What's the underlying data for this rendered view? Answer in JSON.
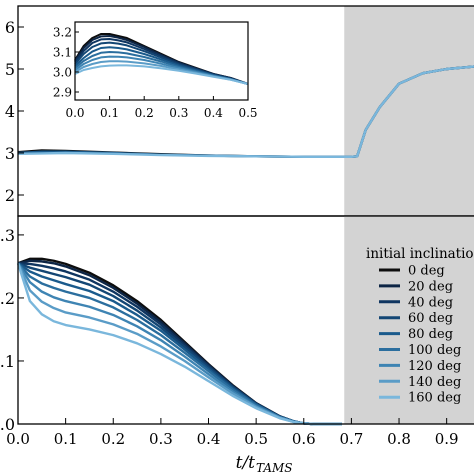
{
  "chart_data": [
    {
      "id": "top",
      "type": "line",
      "xlim": [
        0.0,
        0.97
      ],
      "ylim": [
        1.5,
        6.5
      ],
      "yticks": [
        2,
        3,
        4,
        5,
        6
      ],
      "ytick_labels": [
        "2",
        "3",
        "4",
        "5",
        "6"
      ],
      "shaded_region": [
        0.685,
        0.97
      ],
      "grid": false,
      "series": [
        {
          "name": "0 deg",
          "color": "#0d0d0d",
          "x": [
            0.0,
            0.05,
            0.1,
            0.2,
            0.3,
            0.4,
            0.5,
            0.6,
            0.7,
            0.712,
            0.72,
            0.73,
            0.76,
            0.8,
            0.85,
            0.9,
            0.97
          ],
          "y": [
            3.02,
            3.06,
            3.05,
            3.01,
            2.97,
            2.94,
            2.92,
            2.91,
            2.91,
            2.92,
            3.2,
            3.55,
            4.1,
            4.65,
            4.9,
            5.0,
            5.07
          ]
        },
        {
          "name": "80 deg",
          "color": "#1a5a8c",
          "x": [
            0.0,
            0.05,
            0.1,
            0.2,
            0.3,
            0.4,
            0.5,
            0.6,
            0.7,
            0.712,
            0.72,
            0.73,
            0.76,
            0.8,
            0.85,
            0.9,
            0.97
          ],
          "y": [
            3.0,
            3.03,
            3.03,
            3.0,
            2.96,
            2.94,
            2.92,
            2.91,
            2.91,
            2.92,
            3.2,
            3.55,
            4.1,
            4.65,
            4.9,
            5.0,
            5.07
          ]
        },
        {
          "name": "160 deg",
          "color": "#7ab7dc",
          "x": [
            0.0,
            0.05,
            0.1,
            0.2,
            0.3,
            0.4,
            0.5,
            0.6,
            0.7,
            0.712,
            0.72,
            0.73,
            0.76,
            0.8,
            0.85,
            0.9,
            0.97
          ],
          "y": [
            2.98,
            2.99,
            3.0,
            2.98,
            2.95,
            2.93,
            2.92,
            2.91,
            2.91,
            2.92,
            3.2,
            3.55,
            4.1,
            4.65,
            4.9,
            5.0,
            5.07
          ]
        }
      ]
    },
    {
      "id": "inset",
      "type": "line",
      "xlim": [
        0.0,
        0.5
      ],
      "ylim": [
        2.86,
        3.25
      ],
      "xticks": [
        0.0,
        0.1,
        0.2,
        0.3,
        0.4,
        0.5
      ],
      "xtick_labels": [
        "0.0",
        "0.1",
        "0.2",
        "0.3",
        "0.4",
        "0.5"
      ],
      "yticks": [
        2.9,
        3.0,
        3.1,
        3.2
      ],
      "ytick_labels": [
        "2.9",
        "3.0",
        "3.1",
        "3.2"
      ],
      "x": [
        0.0,
        0.025,
        0.05,
        0.075,
        0.1,
        0.125,
        0.15,
        0.2,
        0.25,
        0.3,
        0.35,
        0.4,
        0.45,
        0.5
      ],
      "series": [
        {
          "name": "0 deg",
          "color": "#0d0d0d",
          "y": [
            3.06,
            3.13,
            3.17,
            3.19,
            3.19,
            3.18,
            3.17,
            3.13,
            3.09,
            3.05,
            3.02,
            2.99,
            2.97,
            2.94
          ]
        },
        {
          "name": "20 deg",
          "color": "#0c2444",
          "y": [
            3.055,
            3.12,
            3.16,
            3.178,
            3.18,
            3.172,
            3.16,
            3.125,
            3.085,
            3.048,
            3.018,
            2.99,
            2.97,
            2.94
          ]
        },
        {
          "name": "40 deg",
          "color": "#0f3560",
          "y": [
            3.05,
            3.105,
            3.145,
            3.163,
            3.165,
            3.158,
            3.148,
            3.115,
            3.08,
            3.043,
            3.015,
            2.988,
            2.968,
            2.94
          ]
        },
        {
          "name": "60 deg",
          "color": "#134674",
          "y": [
            3.04,
            3.09,
            3.125,
            3.143,
            3.147,
            3.142,
            3.133,
            3.104,
            3.072,
            3.038,
            3.012,
            2.986,
            2.966,
            2.94
          ]
        },
        {
          "name": "80 deg",
          "color": "#1a5a8c",
          "y": [
            3.03,
            3.07,
            3.102,
            3.12,
            3.124,
            3.12,
            3.113,
            3.09,
            3.062,
            3.032,
            3.008,
            2.984,
            2.965,
            2.94
          ]
        },
        {
          "name": "100 deg",
          "color": "#2b6e9e",
          "y": [
            3.02,
            3.055,
            3.08,
            3.096,
            3.1,
            3.098,
            3.093,
            3.075,
            3.052,
            3.026,
            3.004,
            2.982,
            2.964,
            2.94
          ]
        },
        {
          "name": "120 deg",
          "color": "#3e84b3",
          "y": [
            3.01,
            3.04,
            3.06,
            3.073,
            3.077,
            3.076,
            3.073,
            3.06,
            3.041,
            3.02,
            3.0,
            2.98,
            2.963,
            2.94
          ]
        },
        {
          "name": "140 deg",
          "color": "#5a9cc7",
          "y": [
            3.0,
            3.025,
            3.04,
            3.05,
            3.054,
            3.054,
            3.052,
            3.043,
            3.03,
            3.013,
            2.996,
            2.978,
            2.962,
            2.94
          ]
        },
        {
          "name": "160 deg",
          "color": "#7ab7dc",
          "y": [
            2.99,
            3.01,
            3.02,
            3.028,
            3.032,
            3.033,
            3.033,
            3.028,
            3.018,
            3.006,
            2.992,
            2.976,
            2.961,
            2.94
          ]
        }
      ]
    },
    {
      "id": "bottom",
      "type": "line",
      "xlim": [
        0.0,
        0.97
      ],
      "ylim": [
        0.0,
        0.33
      ],
      "xticks": [
        0.0,
        0.1,
        0.2,
        0.3,
        0.4,
        0.5,
        0.6,
        0.7,
        0.8,
        0.9
      ],
      "xtick_labels": [
        "0.0",
        "0.1",
        "0.2",
        "0.3",
        "0.4",
        "0.5",
        "0.6",
        "0.7",
        "0.8",
        "0.9"
      ],
      "yticks": [
        0.0,
        0.1,
        0.2,
        0.3
      ],
      "ytick_labels": [
        ".0",
        ".1",
        ".2",
        ".3"
      ],
      "xlabel_main": "t/t",
      "xlabel_sub": "TAMS",
      "shaded_region": [
        0.685,
        0.97
      ],
      "legend_title": "initial inclination",
      "legend_position": "right",
      "x": [
        0.0,
        0.025,
        0.05,
        0.075,
        0.1,
        0.15,
        0.2,
        0.25,
        0.3,
        0.35,
        0.4,
        0.45,
        0.5,
        0.55,
        0.58,
        0.6,
        0.62,
        0.64,
        0.66,
        0.68
      ],
      "series": [
        {
          "name": "0 deg",
          "color": "#0d0d0d",
          "y": [
            0.255,
            0.262,
            0.262,
            0.259,
            0.254,
            0.24,
            0.22,
            0.195,
            0.165,
            0.13,
            0.095,
            0.062,
            0.033,
            0.012,
            0.004,
            0.001,
            0.0,
            0.0,
            0.0,
            0.0
          ]
        },
        {
          "name": "20 deg",
          "color": "#0c2444",
          "y": [
            0.255,
            0.259,
            0.258,
            0.255,
            0.25,
            0.236,
            0.216,
            0.191,
            0.162,
            0.128,
            0.094,
            0.061,
            0.033,
            0.012,
            0.004,
            0.001,
            0.0,
            0.0,
            0.0,
            0.0
          ]
        },
        {
          "name": "40 deg",
          "color": "#0f3560",
          "y": [
            0.255,
            0.254,
            0.251,
            0.247,
            0.242,
            0.229,
            0.21,
            0.186,
            0.158,
            0.125,
            0.092,
            0.06,
            0.032,
            0.012,
            0.004,
            0.001,
            0.0,
            0.0,
            0.0,
            0.0
          ]
        },
        {
          "name": "60 deg",
          "color": "#134674",
          "y": [
            0.255,
            0.248,
            0.243,
            0.238,
            0.233,
            0.221,
            0.203,
            0.18,
            0.153,
            0.122,
            0.09,
            0.059,
            0.032,
            0.011,
            0.004,
            0.001,
            0.0,
            0.0,
            0.0,
            0.0
          ]
        },
        {
          "name": "80 deg",
          "color": "#1a5a8c",
          "y": [
            0.255,
            0.242,
            0.234,
            0.228,
            0.222,
            0.211,
            0.195,
            0.173,
            0.148,
            0.118,
            0.087,
            0.057,
            0.031,
            0.011,
            0.004,
            0.001,
            0.0,
            0.0,
            0.0,
            0.0
          ]
        },
        {
          "name": "100 deg",
          "color": "#2b6e9e",
          "y": [
            0.255,
            0.234,
            0.223,
            0.216,
            0.21,
            0.2,
            0.185,
            0.165,
            0.141,
            0.113,
            0.084,
            0.055,
            0.03,
            0.011,
            0.004,
            0.001,
            0.0,
            0.0,
            0.0,
            0.0
          ]
        },
        {
          "name": "120 deg",
          "color": "#3e84b3",
          "y": [
            0.255,
            0.225,
            0.21,
            0.201,
            0.195,
            0.186,
            0.173,
            0.155,
            0.133,
            0.107,
            0.079,
            0.052,
            0.028,
            0.01,
            0.003,
            0.001,
            0.0,
            0.0,
            0.0,
            0.0
          ]
        },
        {
          "name": "140 deg",
          "color": "#5a9cc7",
          "y": [
            0.255,
            0.212,
            0.194,
            0.184,
            0.177,
            0.169,
            0.158,
            0.143,
            0.123,
            0.1,
            0.074,
            0.049,
            0.027,
            0.01,
            0.003,
            0.001,
            0.0,
            0.0,
            0.0,
            0.0
          ]
        },
        {
          "name": "160 deg",
          "color": "#7ab7dc",
          "y": [
            0.255,
            0.195,
            0.174,
            0.163,
            0.157,
            0.15,
            0.141,
            0.128,
            0.111,
            0.091,
            0.068,
            0.045,
            0.025,
            0.009,
            0.003,
            0.001,
            0.0,
            0.0,
            0.0,
            0.0
          ]
        }
      ]
    }
  ]
}
